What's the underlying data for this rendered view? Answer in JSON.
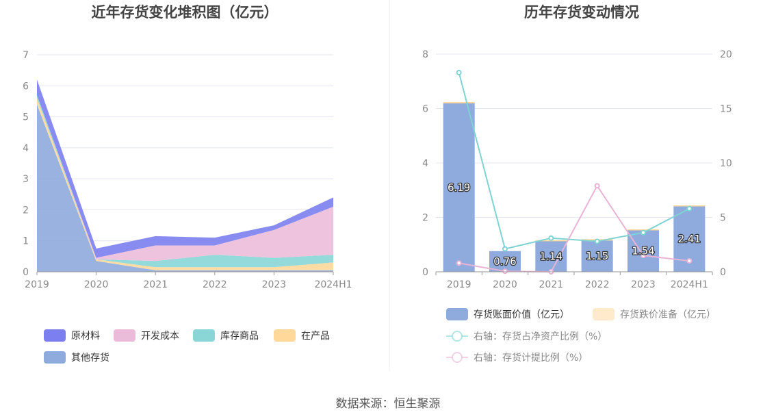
{
  "source_text": "数据来源：恒生聚源",
  "chart_data": [
    {
      "type": "area",
      "title": "近年存货变化堆积图（亿元）",
      "categories": [
        "2019",
        "2020",
        "2021",
        "2022",
        "2023",
        "2024H1"
      ],
      "ylim": [
        0,
        7
      ],
      "yticks": [
        "0",
        "1",
        "2",
        "3",
        "4",
        "5",
        "6",
        "7"
      ],
      "stacked": true,
      "series": [
        {
          "name": "其他存货",
          "color": "#8faadc",
          "values": [
            5.4,
            0.35,
            0.05,
            0.05,
            0.05,
            0.05
          ]
        },
        {
          "name": "在产品",
          "color": "#ffd89a",
          "values": [
            0.2,
            0.05,
            0.1,
            0.1,
            0.1,
            0.25
          ]
        },
        {
          "name": "库存商品",
          "color": "#8ad6d6",
          "values": [
            0.1,
            0.0,
            0.2,
            0.4,
            0.3,
            0.25
          ]
        },
        {
          "name": "开发成本",
          "color": "#ebbcd9",
          "values": [
            0.0,
            0.05,
            0.5,
            0.3,
            0.9,
            1.55
          ]
        },
        {
          "name": "原材料",
          "color": "#7b7ff0",
          "values": [
            0.5,
            0.3,
            0.3,
            0.25,
            0.15,
            0.3
          ]
        }
      ],
      "legend": [
        {
          "name": "原材料",
          "color": "#7b7ff0"
        },
        {
          "name": "开发成本",
          "color": "#ebbcd9"
        },
        {
          "name": "库存商品",
          "color": "#8ad6d6"
        },
        {
          "name": "在产品",
          "color": "#ffd89a"
        },
        {
          "name": "其他存货",
          "color": "#8faadc"
        }
      ]
    },
    {
      "type": "bar",
      "title": "历年存货变动情况",
      "categories": [
        "2019",
        "2020",
        "2021",
        "2022",
        "2023",
        "2024H1"
      ],
      "ylim": [
        0,
        8
      ],
      "yticks": [
        "0",
        "2",
        "4",
        "6",
        "8"
      ],
      "y2lim": [
        0,
        20
      ],
      "y2ticks": [
        "0",
        "5",
        "10",
        "15",
        "20"
      ],
      "series": [
        {
          "name": "存货账面价值（亿元）",
          "color": "#8faadc",
          "kind": "bar",
          "values": [
            6.19,
            0.76,
            1.14,
            1.15,
            1.54,
            2.41
          ],
          "labels": [
            "6.19",
            "0.76",
            "1.14",
            "1.15",
            "1.54",
            "2.41"
          ]
        },
        {
          "name": "存货跌价准备（亿元）",
          "color": "#ffd89a",
          "kind": "bar-stack",
          "values": [
            0.05,
            0.0,
            0.02,
            0.05,
            0.02,
            0.03
          ]
        },
        {
          "name": "右轴：存货占净资产比例（%）",
          "color": "#7ed3d3",
          "kind": "line",
          "values": [
            18.3,
            2.1,
            3.1,
            2.8,
            3.6,
            5.8
          ]
        },
        {
          "name": "右轴：存货计提比例（%）",
          "color": "#e9b3d6",
          "kind": "line",
          "values": [
            0.8,
            0.05,
            0.0,
            7.9,
            1.5,
            1.0
          ]
        }
      ]
    }
  ]
}
